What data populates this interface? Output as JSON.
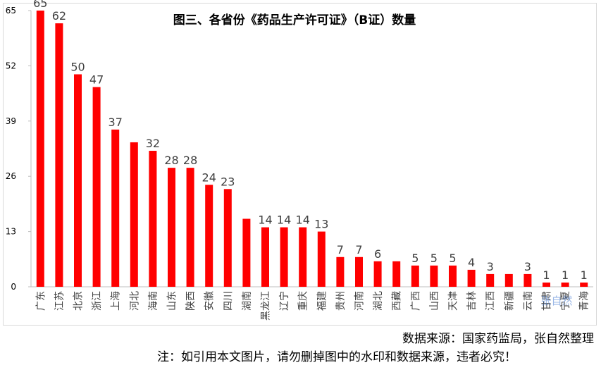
{
  "chart_data": {
    "type": "bar",
    "title": "图三、各省份《药品生产许可证》（B证）数量",
    "categories": [
      "广东",
      "江苏",
      "北京",
      "浙江",
      "上海",
      "河北",
      "海南",
      "山东",
      "陕西",
      "安徽",
      "四川",
      "湖南",
      "黑龙江",
      "辽宁",
      "重庆",
      "福建",
      "贵州",
      "河南",
      "湖北",
      "西藏",
      "广西",
      "山西",
      "天津",
      "吉林",
      "江西",
      "新疆",
      "云南",
      "甘肃",
      "宁夏",
      "青海"
    ],
    "values": [
      65,
      62,
      50,
      47,
      37,
      34,
      32,
      28,
      28,
      24,
      23,
      16,
      14,
      14,
      14,
      13,
      7,
      7,
      6,
      6,
      5,
      5,
      5,
      4,
      3,
      3,
      3,
      1,
      1,
      1
    ],
    "labeled": [
      true,
      true,
      true,
      true,
      true,
      false,
      true,
      true,
      true,
      true,
      true,
      false,
      true,
      true,
      true,
      true,
      true,
      true,
      true,
      false,
      true,
      true,
      true,
      true,
      true,
      false,
      true,
      true,
      true,
      true
    ],
    "yticks": [
      0,
      13,
      26,
      39,
      52,
      65
    ],
    "ylim": [
      0,
      65
    ],
    "grid": false,
    "legend": "none",
    "bar_color": "#ff0000"
  },
  "source_note": "数据来源：国家药监局，张自然整理",
  "copyright_note": "注：如引用本文图片，请勿删掉图中的水印和数据来源，违者必究！",
  "watermark": "张自然"
}
